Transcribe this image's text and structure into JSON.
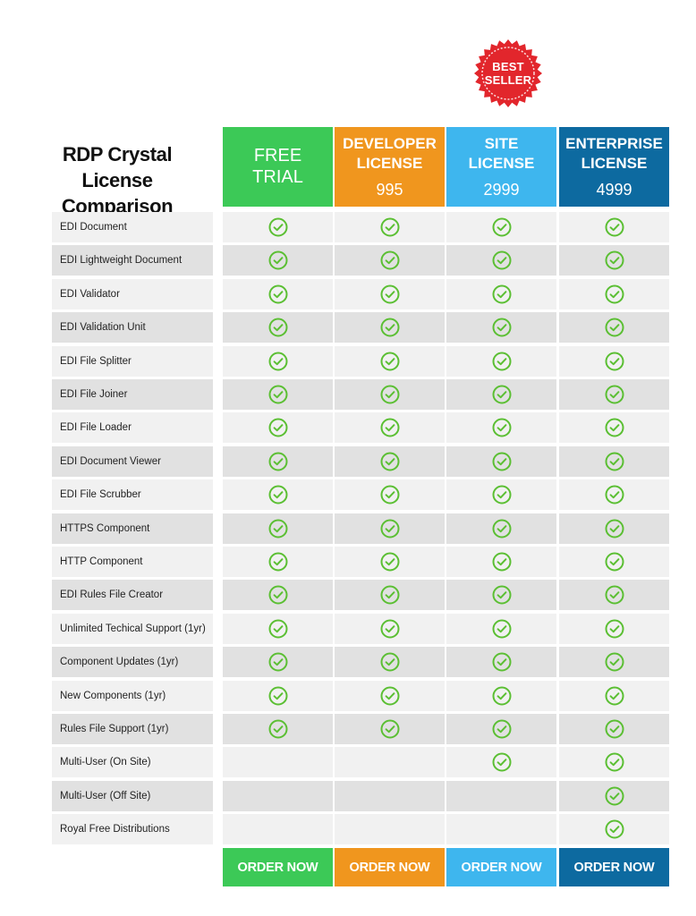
{
  "badge": {
    "line1": "BEST",
    "line2": "SELLER",
    "color": "#e2262c"
  },
  "title": {
    "line1": "RDP Crystal",
    "line2": "License Comparison"
  },
  "colors": {
    "free": "#3cc957",
    "developer": "#f0961e",
    "site": "#3eb6ee",
    "enterprise": "#0d6aa0",
    "check": "#5bbf33",
    "row_light": "#f1f1f1",
    "row_dark": "#e1e1e1"
  },
  "plans": [
    {
      "id": "free",
      "name_line1": "FREE",
      "name_line2": "TRIAL",
      "price": "",
      "order_label": "ORDER NOW"
    },
    {
      "id": "developer",
      "name_line1": "DEVELOPER",
      "name_line2": "LICENSE",
      "price": "995",
      "order_label": "ORDER NOW"
    },
    {
      "id": "site",
      "name_line1": "SITE",
      "name_line2": "LICENSE",
      "price": "2999",
      "order_label": "ORDER NOW"
    },
    {
      "id": "enterprise",
      "name_line1": "ENTERPRISE",
      "name_line2": "LICENSE",
      "price": "4999",
      "order_label": "ORDER NOW"
    }
  ],
  "check_icon": "check-circle-icon",
  "features": [
    {
      "name": "EDI Document",
      "included": [
        true,
        true,
        true,
        true
      ]
    },
    {
      "name": "EDI Lightweight Document",
      "included": [
        true,
        true,
        true,
        true
      ]
    },
    {
      "name": "EDI Validator",
      "included": [
        true,
        true,
        true,
        true
      ]
    },
    {
      "name": "EDI Validation Unit",
      "included": [
        true,
        true,
        true,
        true
      ]
    },
    {
      "name": "EDI File Splitter",
      "included": [
        true,
        true,
        true,
        true
      ]
    },
    {
      "name": "EDI File Joiner",
      "included": [
        true,
        true,
        true,
        true
      ]
    },
    {
      "name": "EDI File Loader",
      "included": [
        true,
        true,
        true,
        true
      ]
    },
    {
      "name": "EDI Document Viewer",
      "included": [
        true,
        true,
        true,
        true
      ]
    },
    {
      "name": "EDI File Scrubber",
      "included": [
        true,
        true,
        true,
        true
      ]
    },
    {
      "name": "HTTPS Component",
      "included": [
        true,
        true,
        true,
        true
      ]
    },
    {
      "name": "HTTP Component",
      "included": [
        true,
        true,
        true,
        true
      ]
    },
    {
      "name": "EDI Rules File Creator",
      "included": [
        true,
        true,
        true,
        true
      ]
    },
    {
      "name": "Unlimited Techical Support (1yr)",
      "included": [
        true,
        true,
        true,
        true
      ]
    },
    {
      "name": "Component Updates (1yr)",
      "included": [
        true,
        true,
        true,
        true
      ]
    },
    {
      "name": "New Components (1yr)",
      "included": [
        true,
        true,
        true,
        true
      ]
    },
    {
      "name": "Rules File Support (1yr)",
      "included": [
        true,
        true,
        true,
        true
      ]
    },
    {
      "name": "Multi-User (On Site)",
      "included": [
        false,
        false,
        true,
        true
      ]
    },
    {
      "name": "Multi-User (Off Site)",
      "included": [
        false,
        false,
        false,
        true
      ]
    },
    {
      "name": "Royal Free Distributions",
      "included": [
        false,
        false,
        false,
        true
      ]
    }
  ]
}
